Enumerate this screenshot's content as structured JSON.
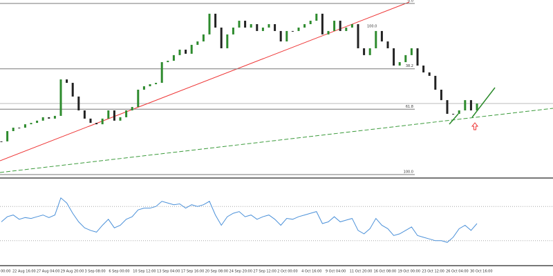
{
  "chart_data": {
    "type": "candlestick",
    "closes": [
      80.6,
      74.6,
      72.6,
      72.6,
      70.6,
      69.8,
      68.5,
      66.5,
      67.3,
      65.7,
      44.4,
      46.4,
      54.4,
      62.5,
      67.3,
      69.8,
      70.6,
      67.3,
      62.5,
      68.5,
      66.5,
      62.5,
      60.5,
      50.4,
      48.4,
      47.2,
      46.4,
      34.3,
      33.5,
      30.2,
      27,
      29.4,
      24.2,
      22.2,
      18.1,
      6,
      14.1,
      26.2,
      18.1,
      14.1,
      10.1,
      14.1,
      12.1,
      16.1,
      14.1,
      12.1,
      16.1,
      22.2,
      16.1,
      16.1,
      14.1,
      12.1,
      10.1,
      6,
      18.1,
      16.1,
      10.1,
      16.1,
      14.1,
      12.1,
      26.2,
      30.2,
      26.2,
      16.1,
      22.2,
      26.2,
      36.3,
      34.3,
      30.2,
      26.2,
      36.3,
      40.3,
      42.3,
      50.4,
      56.5,
      64.5,
      64.5,
      62.5,
      56.5,
      62.5,
      58.5
    ],
    "up_color": "#2e8b2e",
    "down_color": "#222222",
    "ylim": [
      100,
      0
    ],
    "fib_levels": [
      {
        "value": 0,
        "label": "0.0"
      },
      38.2,
      61.8,
      {
        "value": 100,
        "label": "100.0"
      }
    ],
    "annotation": "100.0",
    "oscillator": {
      "values": [
        52,
        58,
        60,
        55,
        57,
        56,
        58,
        60,
        57,
        60,
        80,
        74,
        62,
        52,
        45,
        42,
        40,
        48,
        55,
        45,
        48,
        55,
        58,
        66,
        68,
        68,
        70,
        76,
        74,
        72,
        73,
        68,
        72,
        70,
        72,
        76,
        60,
        48,
        58,
        62,
        64,
        58,
        60,
        55,
        58,
        60,
        55,
        48,
        56,
        55,
        58,
        60,
        62,
        64,
        50,
        52,
        58,
        52,
        54,
        56,
        42,
        38,
        44,
        56,
        48,
        44,
        36,
        38,
        42,
        46,
        36,
        34,
        32,
        30,
        30,
        28,
        34,
        44,
        48,
        42,
        50
      ],
      "color": "#4a90d9",
      "ylim": [
        0,
        100
      ],
      "levels": [
        30,
        70
      ]
    },
    "time_labels": [
      "00:00",
      "22 Aug 16:00",
      "27 Aug 04:00",
      "29 Aug 20:00",
      "3 Sep 08:00",
      "6 Sep 00:00",
      "10 Sep 12:00",
      "13 Sep 04:00",
      "17 Sep 16:00",
      "20 Sep 08:00",
      "24 Sep 20:00",
      "27 Sep 12:00",
      "2 Oct 00:00",
      "4 Oct 16:00",
      "9 Oct 04:00",
      "11 Oct 20:00",
      "16 Oct 08:00",
      "19 Oct 00:00",
      "23 Oct 12:00",
      "26 Oct 04:00",
      "30 Oct 16:00"
    ]
  }
}
